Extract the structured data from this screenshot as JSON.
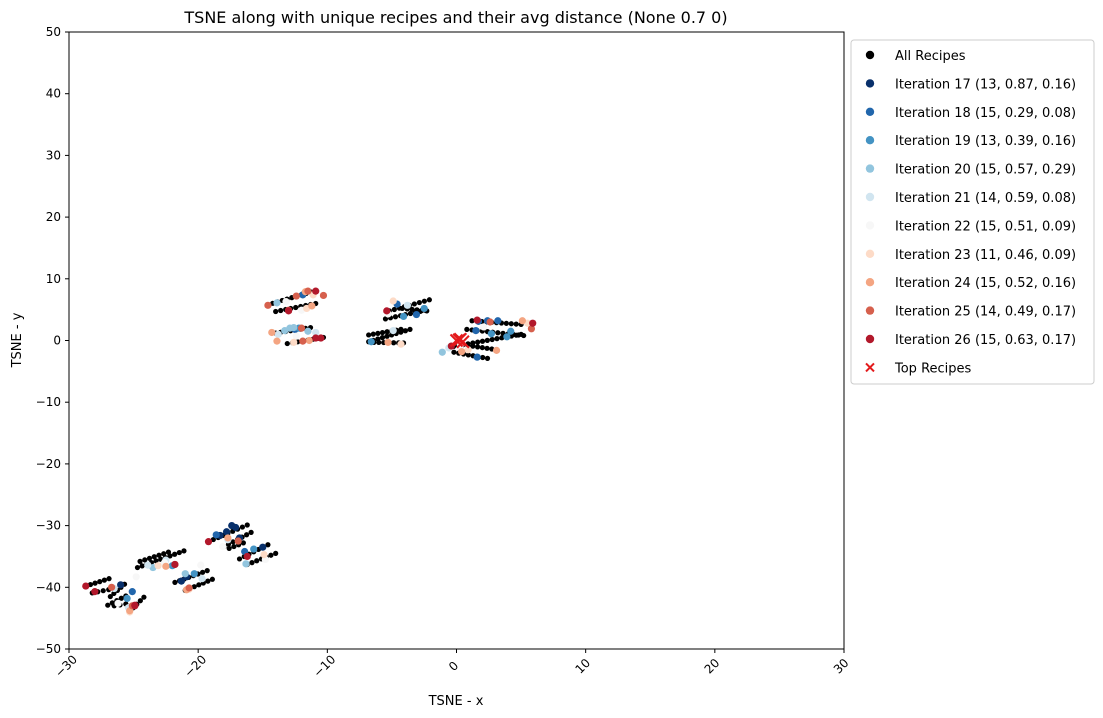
{
  "chart_data": {
    "type": "scatter",
    "title": "TSNE along with unique recipes and their avg distance (None 0.7 0)",
    "xlabel": "TSNE - x",
    "ylabel": "TSNE - y",
    "xlim": [
      -30,
      30
    ],
    "ylim": [
      -50,
      50
    ],
    "xticks": [
      -30,
      -20,
      -10,
      0,
      10,
      20,
      30
    ],
    "yticks": [
      -50,
      -40,
      -30,
      -20,
      -10,
      0,
      10,
      20,
      30,
      40,
      50
    ],
    "legend_position": "outside-right",
    "background_points": {
      "name": "All Recipes",
      "color": "#000000",
      "chains": [
        {
          "from": [
            -28.7,
            -39.8
          ],
          "to": [
            -26.9,
            -38.6
          ]
        },
        {
          "from": [
            -28.2,
            -40.9
          ],
          "to": [
            -26.5,
            -40.2
          ]
        },
        {
          "from": [
            -27.0,
            -42.9
          ],
          "to": [
            -25.6,
            -41.4
          ]
        },
        {
          "from": [
            -26.5,
            -43.0
          ],
          "to": [
            -25.6,
            -42.7
          ]
        },
        {
          "from": [
            -25.3,
            -43.9
          ],
          "to": [
            -24.2,
            -41.6
          ]
        },
        {
          "from": [
            -26.8,
            -41.5
          ],
          "to": [
            -25.7,
            -39.5
          ]
        },
        {
          "from": [
            -24.7,
            -36.8
          ],
          "to": [
            -21.1,
            -34.1
          ]
        },
        {
          "from": [
            -24.5,
            -35.8
          ],
          "to": [
            -22.3,
            -34.3
          ]
        },
        {
          "from": [
            -21.8,
            -39.2
          ],
          "to": [
            -19.3,
            -37.3
          ]
        },
        {
          "from": [
            -21.0,
            -40.5
          ],
          "to": [
            -18.9,
            -38.7
          ]
        },
        {
          "from": [
            -19.2,
            -32.6
          ],
          "to": [
            -16.2,
            -29.9
          ]
        },
        {
          "from": [
            -18.0,
            -33.4
          ],
          "to": [
            -15.9,
            -31.1
          ]
        },
        {
          "from": [
            -17.6,
            -33.7
          ],
          "to": [
            -16.5,
            -32.8
          ]
        },
        {
          "from": [
            -16.8,
            -35.4
          ],
          "to": [
            -14.6,
            -33.1
          ]
        },
        {
          "from": [
            -16.2,
            -36.3
          ],
          "to": [
            -14.0,
            -34.5
          ]
        },
        {
          "from": [
            -14.6,
            5.8
          ],
          "to": [
            -10.9,
            8.1
          ]
        },
        {
          "from": [
            -14.0,
            4.7
          ],
          "to": [
            -10.9,
            6.0
          ]
        },
        {
          "from": [
            -14.0,
            1.2
          ],
          "to": [
            -11.3,
            2.1
          ]
        },
        {
          "from": [
            -13.1,
            -0.5
          ],
          "to": [
            -10.3,
            0.5
          ]
        },
        {
          "from": [
            -6.8,
            -0.2
          ],
          "to": [
            -3.6,
            1.8
          ]
        },
        {
          "from": [
            -6.8,
            0.9
          ],
          "to": [
            -4.3,
            1.8
          ]
        },
        {
          "from": [
            -5.2,
            4.8
          ],
          "to": [
            -2.1,
            6.6
          ]
        },
        {
          "from": [
            -5.5,
            3.5
          ],
          "to": [
            -2.4,
            4.9
          ]
        },
        {
          "from": [
            -4.2,
            5.2
          ],
          "to": [
            -2.3,
            4.8
          ]
        },
        {
          "from": [
            -6.4,
            -0.3
          ],
          "to": [
            -4.1,
            -0.4
          ]
        },
        {
          "from": [
            -0.6,
            -1.1
          ],
          "to": [
            5.0,
            1.0
          ]
        },
        {
          "from": [
            1.2,
            3.2
          ],
          "to": [
            5.0,
            2.6
          ]
        },
        {
          "from": [
            0.8,
            1.8
          ],
          "to": [
            5.2,
            0.8
          ]
        },
        {
          "from": [
            -0.2,
            -1.9
          ],
          "to": [
            2.4,
            -2.9
          ]
        },
        {
          "from": [
            0.9,
            -0.8
          ],
          "to": [
            3.1,
            -1.5
          ]
        }
      ]
    },
    "series": [
      {
        "name": "Iteration 17 (13, 0.87, 0.16)",
        "color": "#08306b",
        "points": [
          [
            -17.4,
            -30.0
          ],
          [
            -17.1,
            -30.3
          ],
          [
            -17.8,
            -31.0
          ],
          [
            -18.3,
            -31.6
          ],
          [
            -26.0,
            -39.6
          ],
          [
            -20.9,
            -38.3
          ],
          [
            -21.3,
            -39.0
          ],
          [
            -15.0,
            -33.5
          ],
          [
            -16.8,
            -32.0
          ]
        ]
      },
      {
        "name": "Iteration 18 (15, 0.29, 0.08)",
        "color": "#2166ac",
        "points": [
          [
            1.7,
            3.1
          ],
          [
            2.4,
            3.2
          ],
          [
            3.2,
            3.2
          ],
          [
            1.5,
            1.6
          ],
          [
            1.6,
            -2.7
          ],
          [
            -4.6,
            5.9
          ],
          [
            -3.1,
            4.2
          ],
          [
            -16.4,
            -34.2
          ],
          [
            -18.6,
            -31.5
          ],
          [
            -12.5,
            1.8
          ],
          [
            -11.9,
            7.4
          ],
          [
            -25.1,
            -40.7
          ]
        ]
      },
      {
        "name": "Iteration 19 (13, 0.39, 0.16)",
        "color": "#4393c3",
        "points": [
          [
            2.7,
            1.1
          ],
          [
            3.9,
            0.6
          ],
          [
            4.2,
            1.5
          ],
          [
            -2.5,
            5.2
          ],
          [
            -4.1,
            3.9
          ],
          [
            -20.3,
            -37.8
          ],
          [
            -25.5,
            -41.8
          ],
          [
            -15.7,
            -33.8
          ],
          [
            -12.2,
            2.0
          ],
          [
            -6.6,
            -0.2
          ],
          [
            -22.0,
            -36.5
          ]
        ]
      },
      {
        "name": "Iteration 20 (15, 0.57, 0.29)",
        "color": "#92c5de",
        "points": [
          [
            -12.6,
            2.1
          ],
          [
            -12.9,
            2.0
          ],
          [
            -13.3,
            1.6
          ],
          [
            -11.5,
            1.5
          ],
          [
            -21.0,
            -37.8
          ],
          [
            -23.5,
            -36.8
          ],
          [
            -16.3,
            -36.2
          ],
          [
            -25.3,
            -43.6
          ],
          [
            -1.1,
            -1.9
          ],
          [
            -13.9,
            6.1
          ]
        ]
      },
      {
        "name": "Iteration 21 (14, 0.59, 0.08)",
        "color": "#d1e5f0",
        "points": [
          [
            -25.4,
            -43.3
          ],
          [
            -23.9,
            -36.4
          ],
          [
            -19.7,
            -38.6
          ],
          [
            -17.7,
            -32.3
          ],
          [
            -0.6,
            -1.2
          ],
          [
            -4.9,
            1.6
          ],
          [
            -13.8,
            1.0
          ],
          [
            -10.9,
            1.3
          ],
          [
            -3.8,
            5.7
          ],
          [
            -26.5,
            -40.2
          ],
          [
            -22.5,
            -35.6
          ]
        ]
      },
      {
        "name": "Iteration 22 (15, 0.51, 0.09)",
        "color": "#f7f7f7",
        "points": [
          [
            -12.4,
            0.7
          ],
          [
            -13.2,
            6.3
          ],
          [
            -5.3,
            4.3
          ],
          [
            0.3,
            -0.7
          ],
          [
            -22.6,
            -36.0
          ],
          [
            -19.8,
            -36.4
          ],
          [
            -26.2,
            -42.6
          ],
          [
            -14.8,
            -35.5
          ],
          [
            2.1,
            2.2
          ],
          [
            -18.1,
            -33.4
          ],
          [
            -24.8,
            -38.3
          ],
          [
            -12.0,
            4.9
          ]
        ]
      },
      {
        "name": "Iteration 23 (11, 0.46, 0.09)",
        "color": "#fddbc7",
        "points": [
          [
            -4.9,
            6.4
          ],
          [
            -11.1,
            7.4
          ],
          [
            -20.7,
            -40.3
          ],
          [
            -25.3,
            -44.0
          ],
          [
            -11.6,
            5.2
          ],
          [
            -12.6,
            -0.3
          ],
          [
            -4.3,
            -0.6
          ],
          [
            0.9,
            -1.5
          ],
          [
            -23.1,
            -36.5
          ],
          [
            5.5,
            2.8
          ],
          [
            -14.9,
            -34.7
          ]
        ]
      },
      {
        "name": "Iteration 24 (15, 0.52, 0.16)",
        "color": "#f4a582",
        "points": [
          [
            -11.2,
            5.6
          ],
          [
            -11.7,
            7.9
          ],
          [
            -13.9,
            -0.1
          ],
          [
            -11.4,
            0.0
          ],
          [
            -22.5,
            -36.6
          ],
          [
            -17.7,
            -32.0
          ],
          [
            -25.3,
            -43.8
          ],
          [
            0.4,
            -1.8
          ],
          [
            3.1,
            -1.6
          ],
          [
            5.1,
            3.2
          ],
          [
            -20.9,
            -40.4
          ],
          [
            -14.3,
            1.3
          ],
          [
            -5.3,
            -0.3
          ]
        ]
      },
      {
        "name": "Iteration 25 (14, 0.49, 0.17)",
        "color": "#d6604d",
        "points": [
          [
            -14.6,
            5.7
          ],
          [
            -12.4,
            7.2
          ],
          [
            -11.5,
            8.0
          ],
          [
            -10.3,
            7.3
          ],
          [
            -12.0,
            2.0
          ],
          [
            -13.0,
            4.9
          ],
          [
            -16.9,
            -32.5
          ],
          [
            -26.7,
            -40.0
          ],
          [
            -21.8,
            -36.3
          ],
          [
            2.6,
            3.0
          ],
          [
            5.8,
            1.9
          ],
          [
            -25.1,
            -43.0
          ],
          [
            -20.7,
            -40.1
          ],
          [
            -11.9,
            -0.1
          ]
        ]
      },
      {
        "name": "Iteration 26 (15, 0.63, 0.17)",
        "color": "#b2182b",
        "points": [
          [
            -10.9,
            8.0
          ],
          [
            -10.5,
            0.4
          ],
          [
            -10.9,
            0.4
          ],
          [
            -5.4,
            4.8
          ],
          [
            -19.2,
            -32.6
          ],
          [
            -24.9,
            -42.9
          ],
          [
            -28.7,
            -39.8
          ],
          [
            -28.0,
            -40.7
          ],
          [
            -16.2,
            -35.0
          ],
          [
            -21.8,
            -36.3
          ],
          [
            1.6,
            3.3
          ],
          [
            5.9,
            2.8
          ],
          [
            -0.4,
            -0.9
          ],
          [
            -13.0,
            4.8
          ],
          [
            -24.9,
            -43.0
          ]
        ]
      }
    ],
    "top_recipes": {
      "name": "Top Recipes",
      "color": "#e31a1c",
      "marker": "x",
      "points": [
        [
          0.0,
          0.0
        ],
        [
          0.2,
          0.1
        ],
        [
          0.5,
          -0.2
        ],
        [
          0.3,
          0.2
        ]
      ]
    },
    "legend": [
      {
        "label": "All Recipes",
        "color": "#000000",
        "marker": "dot"
      },
      {
        "label": "Iteration 17 (13, 0.87, 0.16)",
        "color": "#08306b",
        "marker": "dot"
      },
      {
        "label": "Iteration 18 (15, 0.29, 0.08)",
        "color": "#2166ac",
        "marker": "dot"
      },
      {
        "label": "Iteration 19 (13, 0.39, 0.16)",
        "color": "#4393c3",
        "marker": "dot"
      },
      {
        "label": "Iteration 20 (15, 0.57, 0.29)",
        "color": "#92c5de",
        "marker": "dot"
      },
      {
        "label": "Iteration 21 (14, 0.59, 0.08)",
        "color": "#d1e5f0",
        "marker": "dot"
      },
      {
        "label": "Iteration 22 (15, 0.51, 0.09)",
        "color": "#f7f7f7",
        "marker": "dot"
      },
      {
        "label": "Iteration 23 (11, 0.46, 0.09)",
        "color": "#fddbc7",
        "marker": "dot"
      },
      {
        "label": "Iteration 24 (15, 0.52, 0.16)",
        "color": "#f4a582",
        "marker": "dot"
      },
      {
        "label": "Iteration 25 (14, 0.49, 0.17)",
        "color": "#d6604d",
        "marker": "dot"
      },
      {
        "label": "Iteration 26 (15, 0.63, 0.17)",
        "color": "#b2182b",
        "marker": "dot"
      },
      {
        "label": "Top Recipes",
        "color": "#e31a1c",
        "marker": "x"
      }
    ]
  }
}
